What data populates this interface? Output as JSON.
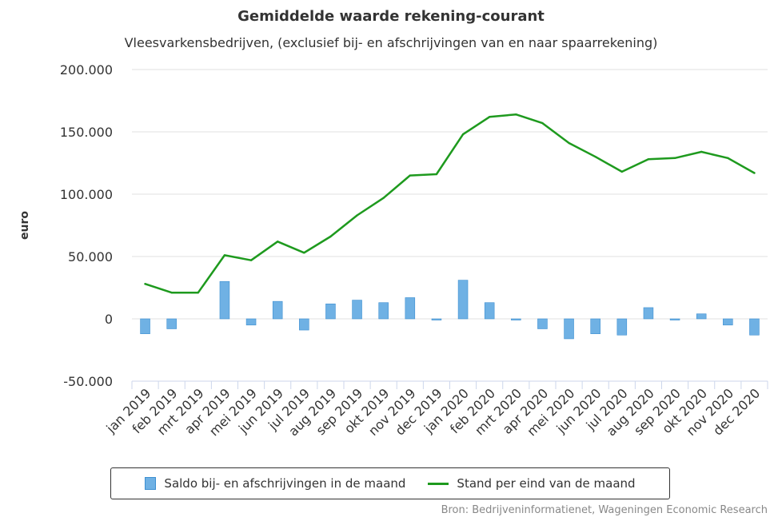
{
  "title": "Gemiddelde waarde rekening-courant",
  "subtitle": "Vleesvarkensbedrijven, (exclusief bij- en afschrijvingen van en naar spaarrekening)",
  "credit": "Bron: Bedrijveninformatienet, Wageningen Economic Research",
  "colors": {
    "bar": "#6fb1e4",
    "bar_border": "#3d8fd1",
    "line": "#1e9a1e",
    "grid": "#e0e0e0",
    "axis": "#ccd6eb"
  },
  "chart_data": {
    "type": "bar",
    "title": "Gemiddelde waarde rekening-courant",
    "subtitle": "Vleesvarkensbedrijven, (exclusief bij- en afschrijvingen van en naar spaarrekening)",
    "ylabel": "euro",
    "xlabel": "",
    "ylim": [
      -50000,
      200000
    ],
    "yticks": [
      -50000,
      0,
      50000,
      100000,
      150000,
      200000
    ],
    "ytick_labels": [
      "-50.000",
      "0",
      "50.000",
      "100.000",
      "150.000",
      "200.000"
    ],
    "grid": true,
    "legend_position": "bottom",
    "categories": [
      "jan 2019",
      "feb 2019",
      "mrt 2019",
      "apr 2019",
      "mei 2019",
      "jun 2019",
      "jul 2019",
      "aug 2019",
      "sep 2019",
      "okt 2019",
      "nov 2019",
      "dec 2019",
      "jan 2020",
      "feb 2020",
      "mrt 2020",
      "apr 2020",
      "mei 2020",
      "jun 2020",
      "jul 2020",
      "aug 2020",
      "sep 2020",
      "okt 2020",
      "nov 2020",
      "dec 2020"
    ],
    "series": [
      {
        "name": "Saldo bij- en afschrijvingen in de maand",
        "type": "bar",
        "values": [
          -12000,
          -8000,
          0,
          30000,
          -5000,
          14000,
          -9000,
          12000,
          15000,
          13000,
          17000,
          -1000,
          31000,
          13000,
          -1000,
          -8000,
          -16000,
          -12000,
          -13000,
          9000,
          -1000,
          4000,
          -5000,
          -13000
        ]
      },
      {
        "name": "Stand per eind van de maand",
        "type": "line",
        "values": [
          28000,
          21000,
          21000,
          51000,
          47000,
          62000,
          53000,
          66000,
          83000,
          97000,
          115000,
          116000,
          148000,
          162000,
          164000,
          157000,
          141000,
          130000,
          118000,
          128000,
          129000,
          134000,
          129000,
          117000
        ]
      }
    ]
  }
}
